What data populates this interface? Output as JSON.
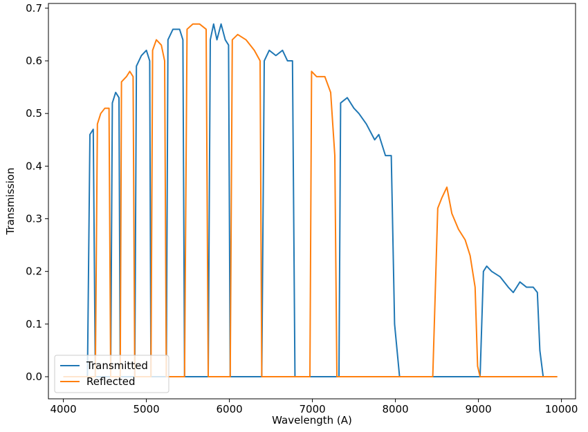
{
  "chart_data": {
    "type": "line",
    "x_label": "Wavelength (A)",
    "y_label": "Transmission",
    "x": [
      4000,
      4290,
      4320,
      4360,
      4385,
      4410,
      4450,
      4500,
      4550,
      4570,
      4590,
      4630,
      4670,
      4685,
      4700,
      4760,
      4800,
      4840,
      4860,
      4880,
      4940,
      5000,
      5040,
      5055,
      5075,
      5120,
      5180,
      5220,
      5240,
      5260,
      5320,
      5400,
      5440,
      5460,
      5490,
      5560,
      5640,
      5720,
      5745,
      5770,
      5810,
      5850,
      5900,
      5950,
      5990,
      6010,
      6035,
      6100,
      6200,
      6300,
      6370,
      6390,
      6420,
      6480,
      6560,
      6640,
      6700,
      6760,
      6790,
      6970,
      6990,
      7050,
      7150,
      7220,
      7270,
      7295,
      7320,
      7340,
      7420,
      7500,
      7560,
      7650,
      7750,
      7800,
      7880,
      7950,
      7990,
      8050,
      8450,
      8510,
      8560,
      8620,
      8680,
      8760,
      8840,
      8900,
      8960,
      8990,
      9020,
      9060,
      9100,
      9160,
      9260,
      9360,
      9420,
      9500,
      9580,
      9660,
      9710,
      9740,
      9780,
      9950
    ],
    "series": [
      {
        "name": "Transmitted",
        "color": "#1f77b4",
        "values": [
          0,
          0,
          0.46,
          0.47,
          0,
          0,
          0,
          0,
          0,
          0,
          0.52,
          0.54,
          0.53,
          0,
          0,
          0,
          0,
          0,
          0,
          0.59,
          0.61,
          0.62,
          0.6,
          0,
          0,
          0,
          0,
          0,
          0,
          0.64,
          0.66,
          0.66,
          0.64,
          0,
          0,
          0,
          0,
          0,
          0,
          0.64,
          0.67,
          0.64,
          0.67,
          0.64,
          0.63,
          0,
          0,
          0,
          0,
          0,
          0,
          0,
          0.6,
          0.62,
          0.61,
          0.62,
          0.6,
          0.6,
          0,
          0,
          0,
          0,
          0,
          0,
          0,
          0,
          0,
          0.52,
          0.53,
          0.51,
          0.5,
          0.48,
          0.45,
          0.46,
          0.42,
          0.42,
          0.1,
          0,
          0,
          0,
          0,
          0,
          0,
          0,
          0,
          0,
          0,
          0,
          0,
          0.2,
          0.21,
          0.2,
          0.19,
          0.17,
          0.16,
          0.18,
          0.17,
          0.17,
          0.16,
          0.05,
          0,
          0
        ]
      },
      {
        "name": "Reflected",
        "color": "#ff7f0e",
        "values": [
          0,
          0,
          0,
          0,
          0,
          0.48,
          0.5,
          0.51,
          0.51,
          0,
          0,
          0,
          0,
          0,
          0.56,
          0.57,
          0.58,
          0.57,
          0,
          0,
          0,
          0,
          0,
          0,
          0.62,
          0.64,
          0.63,
          0.6,
          0,
          0,
          0,
          0,
          0,
          0,
          0.66,
          0.67,
          0.67,
          0.66,
          0,
          0,
          0,
          0,
          0,
          0,
          0,
          0,
          0.64,
          0.65,
          0.64,
          0.62,
          0.6,
          0,
          0,
          0,
          0,
          0,
          0,
          0,
          0,
          0,
          0.58,
          0.57,
          0.57,
          0.54,
          0.42,
          0,
          0,
          0,
          0,
          0,
          0,
          0,
          0,
          0,
          0,
          0,
          0,
          0,
          0,
          0.32,
          0.34,
          0.36,
          0.31,
          0.28,
          0.26,
          0.23,
          0.17,
          0.02,
          0,
          0,
          0,
          0,
          0,
          0,
          0,
          0,
          0,
          0,
          0,
          0,
          0,
          0
        ]
      }
    ],
    "xlim": [
      3820,
      10170
    ],
    "ylim": [
      -0.042,
      0.709
    ],
    "xticks": [
      4000,
      5000,
      6000,
      7000,
      8000,
      9000,
      10000
    ],
    "yticks": [
      {
        "value": 0,
        "label": "0.0"
      },
      0.1,
      0.2,
      0.3,
      0.4,
      0.5,
      0.6,
      0.7
    ],
    "legend": "lower left",
    "grid": false
  }
}
